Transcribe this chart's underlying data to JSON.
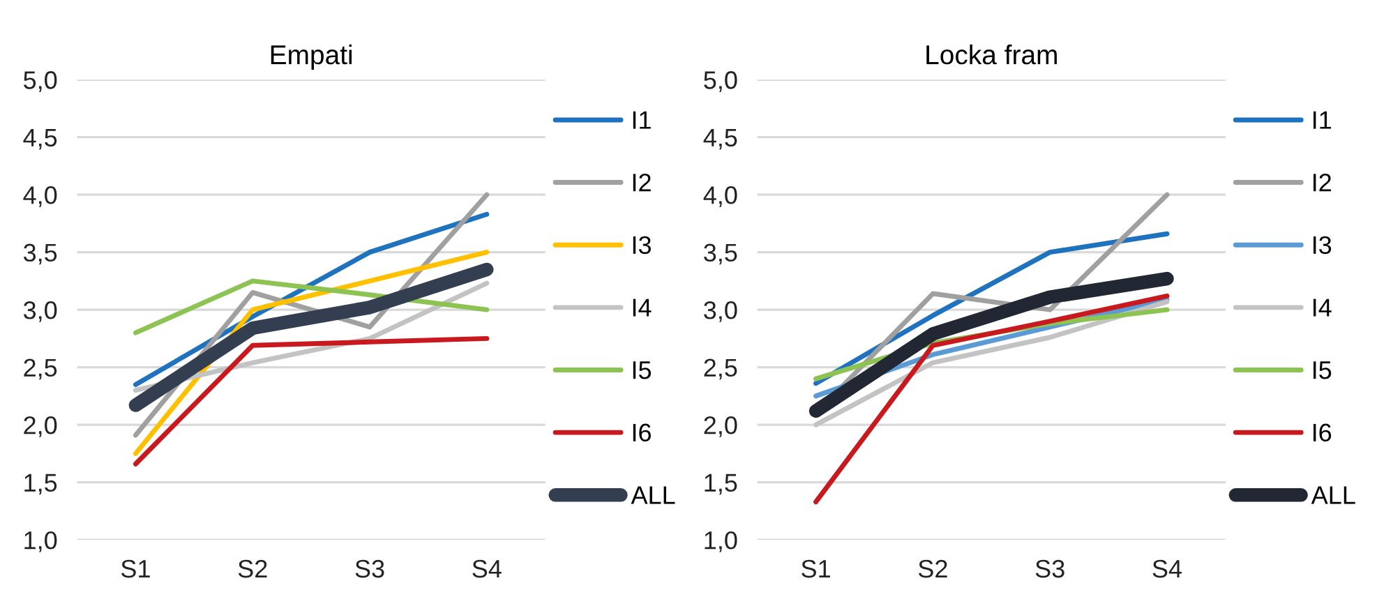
{
  "chart_data": [
    {
      "type": "line",
      "title": "Empati",
      "categories": [
        "S1",
        "S2",
        "S3",
        "S4"
      ],
      "ylim": [
        1.0,
        5.0
      ],
      "yticks": [
        {
          "value": 1.0,
          "label": "1,0"
        },
        {
          "value": 1.5,
          "label": "1,5"
        },
        {
          "value": 2.0,
          "label": "2,0"
        },
        {
          "value": 2.5,
          "label": "2,5"
        },
        {
          "value": 3.0,
          "label": "3,0"
        },
        {
          "value": 3.5,
          "label": "3,5"
        },
        {
          "value": 4.0,
          "label": "4,0"
        },
        {
          "value": 4.5,
          "label": "4,5"
        },
        {
          "value": 5.0,
          "label": "5,0"
        }
      ],
      "grid": "y",
      "legend": "right",
      "marker": "none",
      "line_style": "solid",
      "series": [
        {
          "name": "I1",
          "color": "#1f73be",
          "values": [
            2.35,
            2.94,
            3.5,
            3.83
          ]
        },
        {
          "name": "I2",
          "color": "#a0a0a0",
          "values": [
            1.91,
            3.15,
            2.85,
            4.0
          ]
        },
        {
          "name": "I3",
          "color": "#ffc000",
          "values": [
            1.75,
            3.0,
            3.25,
            3.5
          ]
        },
        {
          "name": "I4",
          "color": "#c3c3c3",
          "values": [
            2.3,
            2.54,
            2.75,
            3.23
          ]
        },
        {
          "name": "I5",
          "color": "#8dc352",
          "values": [
            2.8,
            3.25,
            3.13,
            3.0
          ]
        },
        {
          "name": "I6",
          "color": "#c8191e",
          "values": [
            1.66,
            2.69,
            2.72,
            2.75
          ]
        },
        {
          "name": "ALL",
          "color": "#333f50",
          "values": [
            2.17,
            2.84,
            3.02,
            3.35
          ]
        }
      ]
    },
    {
      "type": "line",
      "title": "Locka fram",
      "categories": [
        "S1",
        "S2",
        "S3",
        "S4"
      ],
      "ylim": [
        1.0,
        5.0
      ],
      "yticks": [
        {
          "value": 1.0,
          "label": "1,0"
        },
        {
          "value": 1.5,
          "label": "1,5"
        },
        {
          "value": 2.0,
          "label": "2,0"
        },
        {
          "value": 2.5,
          "label": "2,5"
        },
        {
          "value": 3.0,
          "label": "3,0"
        },
        {
          "value": 3.5,
          "label": "3,5"
        },
        {
          "value": 4.0,
          "label": "4,0"
        },
        {
          "value": 4.5,
          "label": "4,5"
        },
        {
          "value": 5.0,
          "label": "5,0"
        }
      ],
      "grid": "y",
      "legend": "right",
      "marker": "none",
      "line_style": "solid",
      "series": [
        {
          "name": "I1",
          "color": "#1f73be",
          "values": [
            2.36,
            2.95,
            3.5,
            3.66
          ]
        },
        {
          "name": "I2",
          "color": "#a0a0a0",
          "values": [
            2.1,
            3.14,
            3.0,
            4.0
          ]
        },
        {
          "name": "I3",
          "color": "#5b9bd5",
          "values": [
            2.25,
            2.61,
            2.85,
            3.09
          ]
        },
        {
          "name": "I4",
          "color": "#c3c3c3",
          "values": [
            2.0,
            2.54,
            2.76,
            3.07
          ]
        },
        {
          "name": "I5",
          "color": "#8dc352",
          "values": [
            2.4,
            2.71,
            2.88,
            3.0
          ]
        },
        {
          "name": "I6",
          "color": "#c8191e",
          "values": [
            1.33,
            2.69,
            2.9,
            3.12
          ]
        },
        {
          "name": "ALL",
          "color": "#212733",
          "values": [
            2.12,
            2.79,
            3.11,
            3.27
          ]
        }
      ]
    }
  ]
}
